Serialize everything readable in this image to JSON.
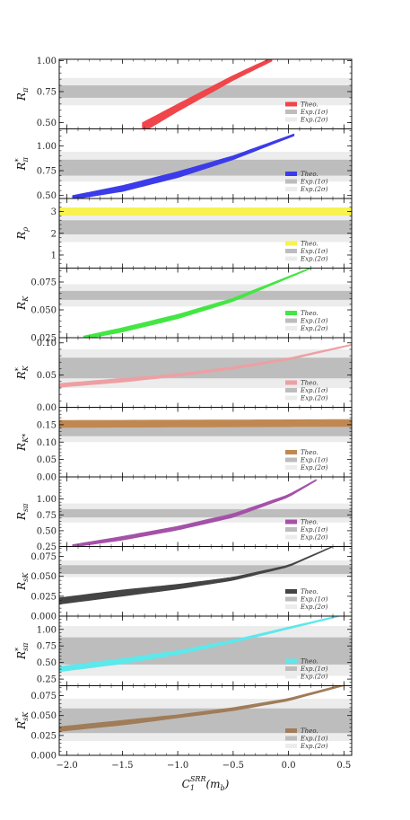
{
  "figure": {
    "xlabel_main": "C",
    "xlabel_sub": "1",
    "xlabel_sup": "SRR",
    "xlabel_tail": "(m",
    "xlabel_tail_sub": "b",
    "xlabel_close": ")",
    "x_ticks": [
      "−2.0",
      "−1.5",
      "−1.0",
      "−0.5",
      "0.0",
      "0.5"
    ],
    "x_tick_values": [
      -2.0,
      -1.5,
      -1.0,
      -0.5,
      0.0,
      0.5
    ],
    "xlim": [
      -2.07,
      0.57
    ],
    "legend": {
      "theo": "Theo.",
      "exp1": "Exp.(1σ)",
      "exp2": "Exp.(2σ)"
    },
    "colors": {
      "exp1": "#bdbdbd",
      "exp2": "#ececec"
    }
  },
  "chart_data": [
    {
      "type": "area",
      "ylabel_main": "R",
      "ylabel_sub": "π",
      "ylabel_sup": "",
      "ylim": [
        0.45,
        1.01
      ],
      "yticks": [
        0.5,
        0.75,
        1.0
      ],
      "ytick_labels": [
        "0.50",
        "0.75",
        "1.00"
      ],
      "color": "#f0454a",
      "exp1": [
        0.7,
        0.8
      ],
      "exp2": [
        0.64,
        0.86
      ],
      "theo_x": [
        -1.32,
        -1.0,
        -0.5,
        -0.15
      ],
      "theo_center": [
        0.46,
        0.62,
        0.86,
        1.01
      ],
      "theo_halfwidth": [
        0.04,
        0.03,
        0.02,
        0.015
      ]
    },
    {
      "type": "area",
      "ylabel_main": "R",
      "ylabel_sub": "π",
      "ylabel_sup": "*",
      "ylim": [
        0.47,
        1.17
      ],
      "yticks": [
        0.5,
        0.75,
        1.0
      ],
      "ytick_labels": [
        "0.50",
        "0.75",
        "1.00"
      ],
      "color": "#3b3bea",
      "exp1": [
        0.7,
        0.86
      ],
      "exp2": [
        0.64,
        0.94
      ],
      "theo_x": [
        -1.95,
        -1.5,
        -1.0,
        -0.5,
        0.05
      ],
      "theo_center": [
        0.48,
        0.57,
        0.71,
        0.88,
        1.11
      ],
      "theo_halfwidth": [
        0.02,
        0.03,
        0.03,
        0.02,
        0.01
      ]
    },
    {
      "type": "area",
      "ylabel_main": "R",
      "ylabel_sub": "ρ",
      "ylabel_sup": "",
      "ylim": [
        0.4,
        3.6
      ],
      "yticks": [
        1,
        2,
        3
      ],
      "ytick_labels": [
        "1",
        "2",
        "3"
      ],
      "color": "#f7f24c",
      "exp1": [
        1.95,
        2.6
      ],
      "exp2": [
        1.6,
        2.9
      ],
      "theo_x": [
        -2.07,
        0.57
      ],
      "theo_center": [
        3.0,
        3.0
      ],
      "theo_halfwidth": [
        0.17,
        0.17
      ]
    },
    {
      "type": "area",
      "ylabel_main": "R",
      "ylabel_sub": "K",
      "ylabel_sup": "",
      "ylim": [
        0.025,
        0.0875
      ],
      "yticks": [
        0.025,
        0.05,
        0.075
      ],
      "ytick_labels": [
        "0.025",
        "0.050",
        "0.075"
      ],
      "color": "#44e644",
      "exp1": [
        0.059,
        0.067
      ],
      "exp2": [
        0.053,
        0.073
      ],
      "theo_x": [
        -1.85,
        -1.5,
        -1.0,
        -0.5,
        0.2
      ],
      "theo_center": [
        0.025,
        0.032,
        0.044,
        0.059,
        0.0875
      ],
      "theo_halfwidth": [
        0.0015,
        0.002,
        0.002,
        0.0015,
        0.0005
      ]
    },
    {
      "type": "area",
      "ylabel_main": "R",
      "ylabel_sub": "K",
      "ylabel_sup": "*",
      "ylim": [
        0.0,
        0.108
      ],
      "yticks": [
        0.0,
        0.05,
        0.1
      ],
      "ytick_labels": [
        "0.00",
        "0.05",
        "0.10"
      ],
      "color": "#eda0a4",
      "exp1": [
        0.045,
        0.077
      ],
      "exp2": [
        0.03,
        0.09
      ],
      "theo_x": [
        -2.07,
        -1.5,
        -1.0,
        -0.5,
        0.0,
        0.57
      ],
      "theo_center": [
        0.034,
        0.042,
        0.05,
        0.061,
        0.075,
        0.097
      ],
      "theo_halfwidth": [
        0.003,
        0.003,
        0.002,
        0.002,
        0.0015,
        0.001
      ]
    },
    {
      "type": "area",
      "ylabel_main": "R",
      "ylabel_sub": "K*",
      "ylabel_sup": "",
      "ylim": [
        0.0,
        0.2
      ],
      "yticks": [
        0.0,
        0.05,
        0.1,
        0.15
      ],
      "ytick_labels": [
        "0.00",
        "0.05",
        "0.10",
        "0.15"
      ],
      "color": "#c08850",
      "exp1": [
        0.117,
        0.147
      ],
      "exp2": [
        0.1,
        0.165
      ],
      "theo_x": [
        -2.07,
        0.57
      ],
      "theo_center": [
        0.152,
        0.155
      ],
      "theo_halfwidth": [
        0.01,
        0.01
      ]
    },
    {
      "type": "area",
      "ylabel_main": "R",
      "ylabel_sub": "sπ",
      "ylabel_sup": "",
      "ylim": [
        0.25,
        1.35
      ],
      "yticks": [
        0.25,
        0.5,
        0.75,
        1.0
      ],
      "ytick_labels": [
        "0.25",
        "0.50",
        "0.75",
        "1.00"
      ],
      "color": "#a451a8",
      "exp1": [
        0.71,
        0.84
      ],
      "exp2": [
        0.63,
        0.93
      ],
      "theo_x": [
        -1.95,
        -1.5,
        -1.0,
        -0.5,
        0.0,
        0.25
      ],
      "theo_center": [
        0.26,
        0.38,
        0.54,
        0.74,
        1.05,
        1.3
      ],
      "theo_halfwidth": [
        0.02,
        0.03,
        0.03,
        0.03,
        0.02,
        0.01
      ]
    },
    {
      "type": "area",
      "ylabel_main": "R",
      "ylabel_sub": "sK",
      "ylabel_sup": "",
      "ylim": [
        0.0,
        0.0875
      ],
      "yticks": [
        0.0,
        0.025,
        0.05,
        0.075
      ],
      "ytick_labels": [
        "0.000",
        "0.025",
        "0.050",
        "0.075"
      ],
      "color": "#444444",
      "exp1": [
        0.053,
        0.064
      ],
      "exp2": [
        0.049,
        0.07
      ],
      "theo_x": [
        -2.07,
        -1.5,
        -1.0,
        -0.5,
        0.0,
        0.4
      ],
      "theo_center": [
        0.019,
        0.029,
        0.037,
        0.047,
        0.063,
        0.0875
      ],
      "theo_halfwidth": [
        0.004,
        0.004,
        0.003,
        0.002,
        0.001,
        0.0005
      ]
    },
    {
      "type": "area",
      "ylabel_main": "R",
      "ylabel_sub": "sπ",
      "ylabel_sup": "*",
      "ylim": [
        0.15,
        1.2
      ],
      "yticks": [
        0.25,
        0.5,
        0.75,
        1.0
      ],
      "ytick_labels": [
        "0.25",
        "0.50",
        "0.75",
        "1.00"
      ],
      "color": "#5de8ec",
      "exp1": [
        0.47,
        0.88
      ],
      "exp2": [
        0.3,
        1.05
      ],
      "theo_x": [
        -2.07,
        -1.5,
        -1.0,
        -0.5,
        0.0,
        0.45
      ],
      "theo_center": [
        0.4,
        0.52,
        0.65,
        0.82,
        1.02,
        1.2
      ],
      "theo_halfwidth": [
        0.04,
        0.04,
        0.03,
        0.02,
        0.015,
        0.01
      ]
    },
    {
      "type": "area",
      "ylabel_main": "R",
      "ylabel_sub": "sK",
      "ylabel_sup": "*",
      "ylim": [
        0.0,
        0.0875
      ],
      "yticks": [
        0.0,
        0.025,
        0.05,
        0.075
      ],
      "ytick_labels": [
        "0.000",
        "0.025",
        "0.050",
        "0.075"
      ],
      "color": "#a07c58",
      "exp1": [
        0.028,
        0.059
      ],
      "exp2": [
        0.018,
        0.071
      ],
      "theo_x": [
        -2.07,
        -1.5,
        -1.0,
        -0.5,
        0.0,
        0.57
      ],
      "theo_center": [
        0.033,
        0.041,
        0.049,
        0.058,
        0.07,
        0.091
      ],
      "theo_halfwidth": [
        0.003,
        0.003,
        0.002,
        0.002,
        0.0015,
        0.001
      ]
    }
  ]
}
